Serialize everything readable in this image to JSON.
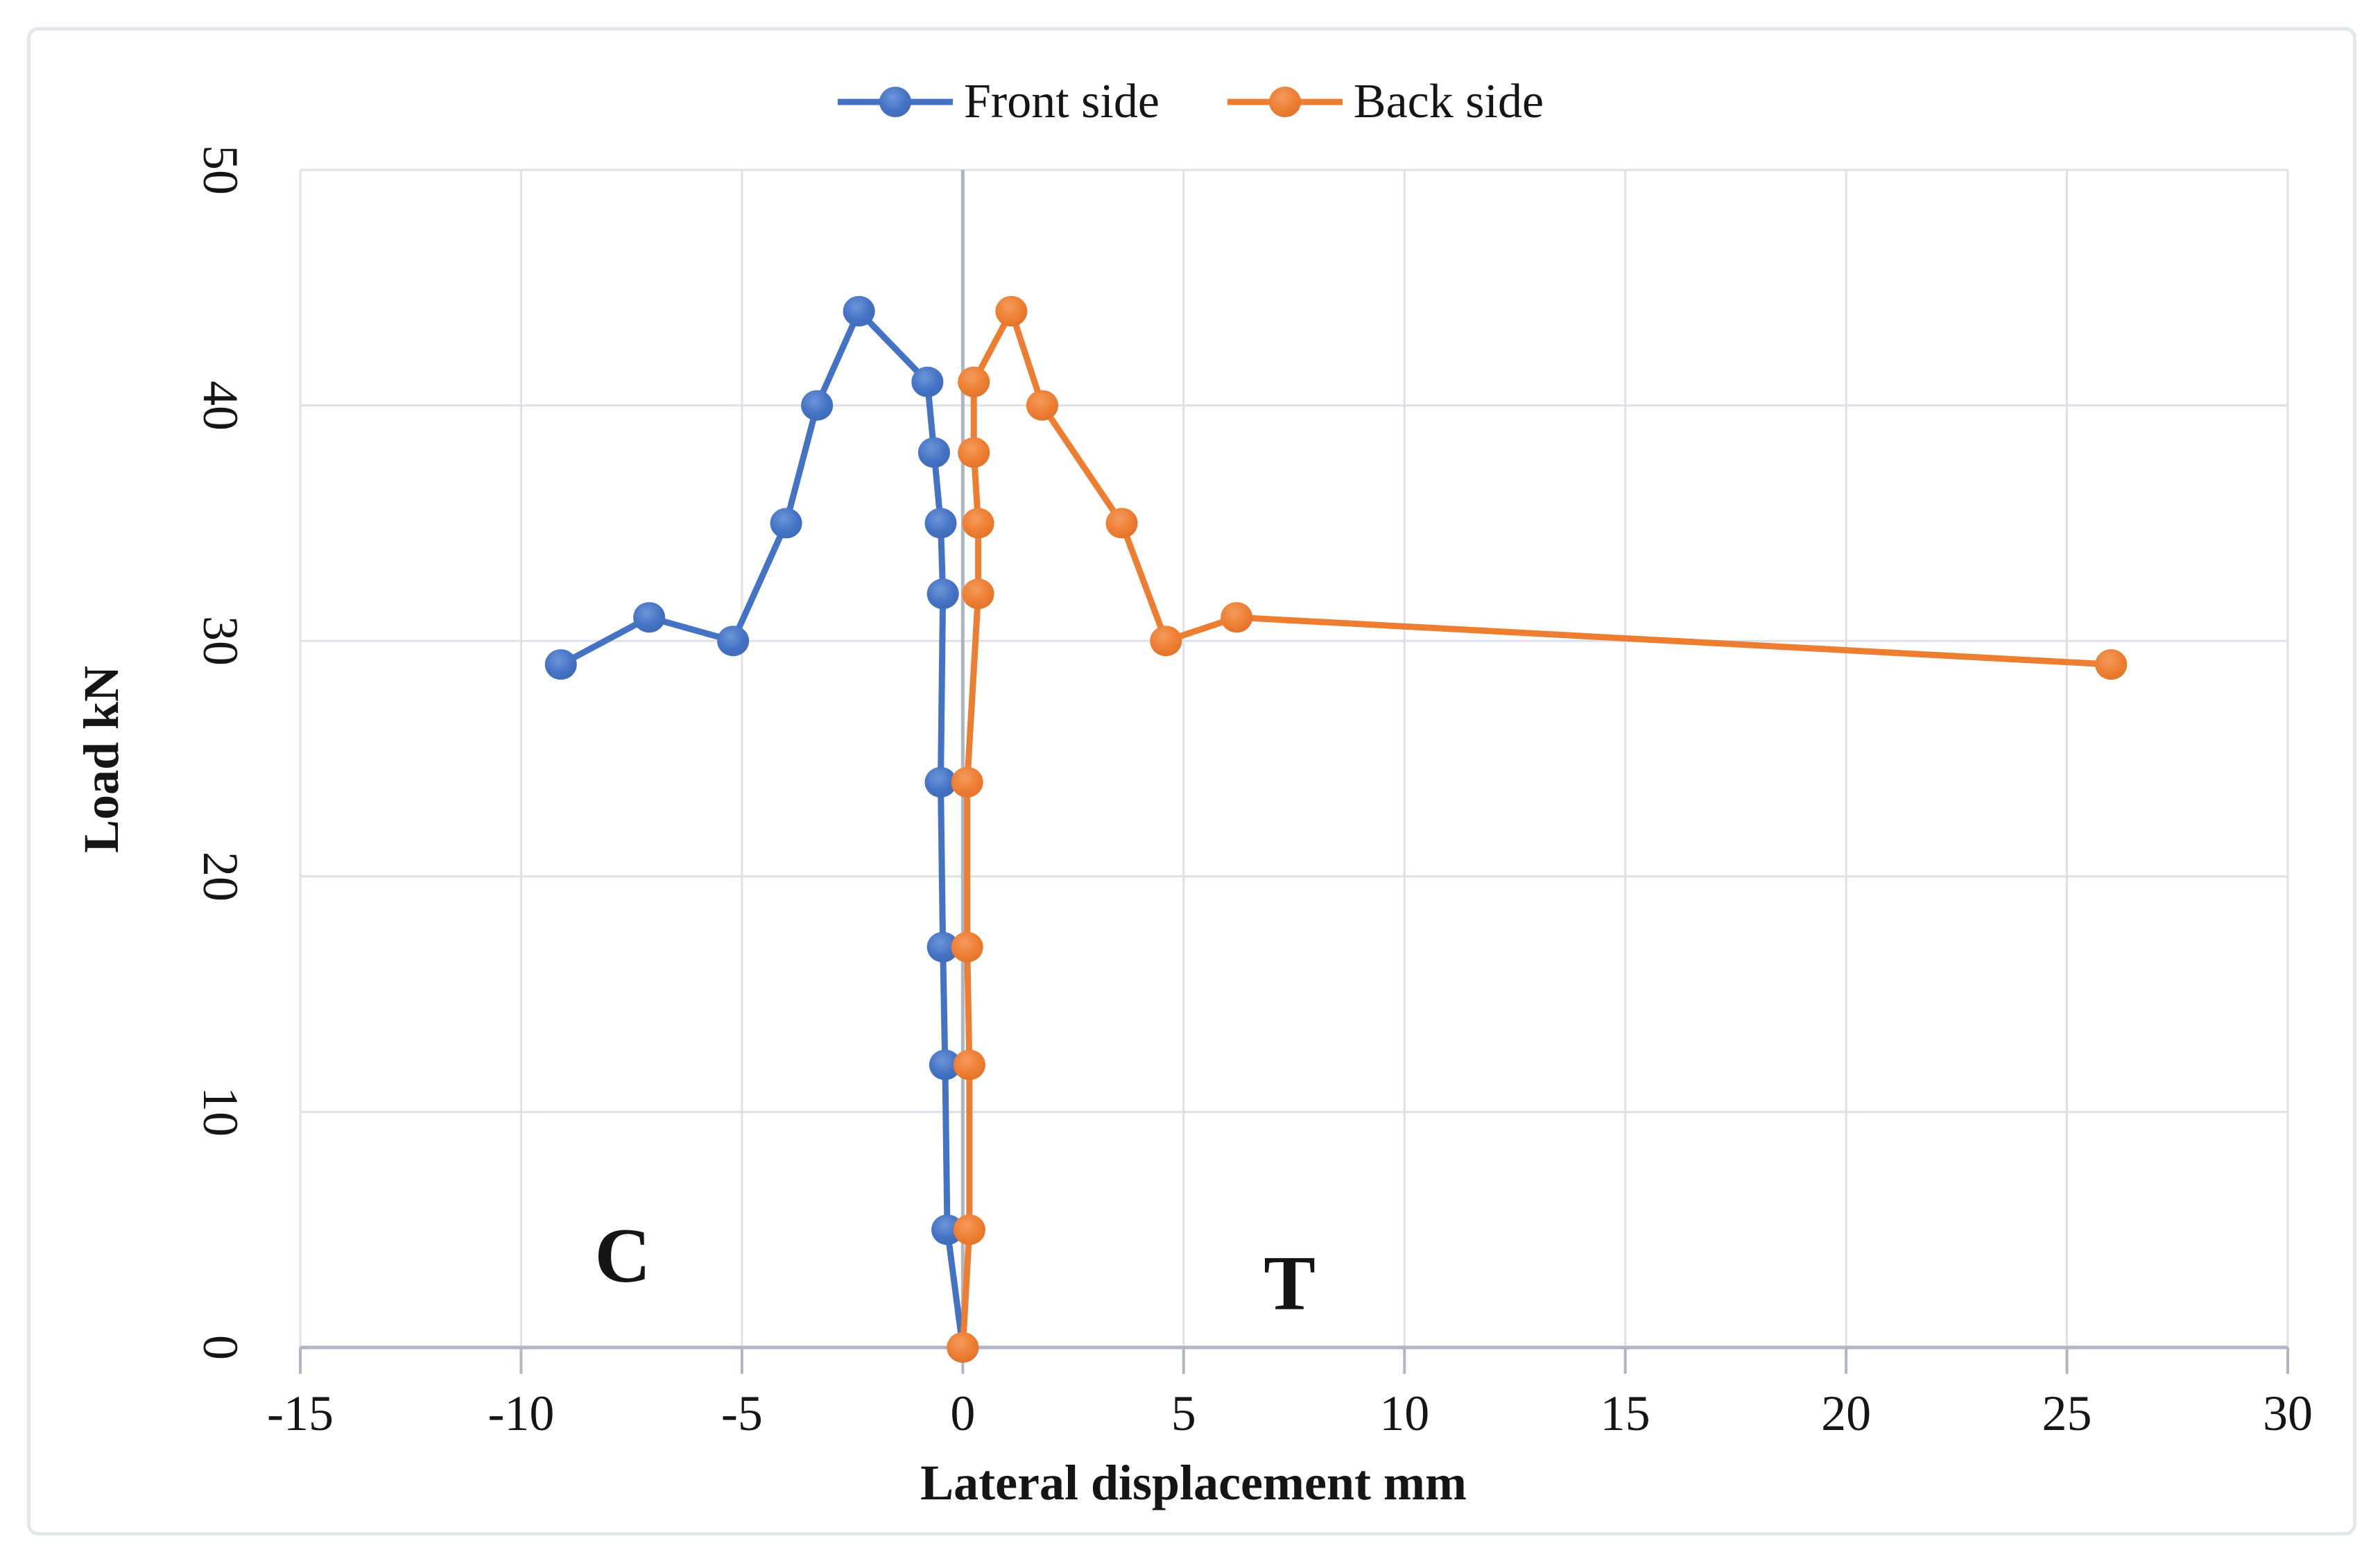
{
  "chart_data": {
    "type": "line",
    "title": "",
    "xlabel": "Lateral displacement mm",
    "ylabel": "Load kN",
    "xlim": [
      -15,
      30
    ],
    "ylim": [
      0,
      50
    ],
    "x_ticks": [
      -15,
      -10,
      -5,
      0,
      5,
      10,
      15,
      20,
      25,
      30
    ],
    "y_ticks": [
      0,
      10,
      20,
      30,
      40,
      50
    ],
    "grid": true,
    "marker": "circle",
    "legend_position": "top-center",
    "annotations": [
      {
        "text": "C",
        "x": -7.7,
        "y": 3.9
      },
      {
        "text": "T",
        "x": 7.4,
        "y": 2.7
      }
    ],
    "series": [
      {
        "name": "Front side",
        "color": "#4472C4",
        "points": [
          [
            0,
            0
          ],
          [
            -0.35,
            5
          ],
          [
            -0.4,
            12
          ],
          [
            -0.45,
            17
          ],
          [
            -0.5,
            24
          ],
          [
            -0.45,
            32
          ],
          [
            -0.5,
            35
          ],
          [
            -0.65,
            38
          ],
          [
            -0.8,
            41
          ],
          [
            -2.35,
            44
          ],
          [
            -3.3,
            40
          ],
          [
            -4.0,
            35
          ],
          [
            -5.2,
            30
          ],
          [
            -7.1,
            31
          ],
          [
            -9.1,
            29
          ]
        ]
      },
      {
        "name": "Back side",
        "color": "#ED7D31",
        "points": [
          [
            0,
            0
          ],
          [
            0.15,
            5
          ],
          [
            0.15,
            12
          ],
          [
            0.1,
            17
          ],
          [
            0.1,
            24
          ],
          [
            0.35,
            32
          ],
          [
            0.35,
            35
          ],
          [
            0.25,
            38
          ],
          [
            0.25,
            41
          ],
          [
            1.1,
            44
          ],
          [
            1.8,
            40
          ],
          [
            3.6,
            35
          ],
          [
            4.6,
            30
          ],
          [
            6.2,
            31
          ],
          [
            26,
            29
          ]
        ]
      }
    ]
  },
  "colors": {
    "grid": "#DDE0E7",
    "axis": "#AFB5C2",
    "border": "#E3E6EB",
    "text": "#151515",
    "front_light": "#6D95D8",
    "front_dark": "#3D67AE",
    "back_light": "#F49B5D",
    "back_dark": "#DA6F26"
  }
}
